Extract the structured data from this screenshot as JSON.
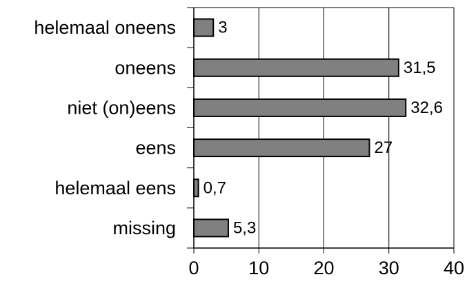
{
  "chart_data": {
    "type": "bar",
    "orientation": "horizontal",
    "categories": [
      "helemaal oneens",
      "oneens",
      "niet (on)eens",
      "eens",
      "helemaal eens",
      "missing"
    ],
    "values": [
      3,
      31.5,
      32.6,
      27,
      0.7,
      5.3
    ],
    "value_labels": [
      "3",
      "31,5",
      "32,6",
      "27",
      "0,7",
      "5,3"
    ],
    "xlim": [
      0,
      40
    ],
    "xticks": [
      0,
      10,
      20,
      30,
      40
    ],
    "grid": "vertical",
    "legend": "none",
    "bar_color": "#808080",
    "bar_edge_color": "#000000"
  }
}
